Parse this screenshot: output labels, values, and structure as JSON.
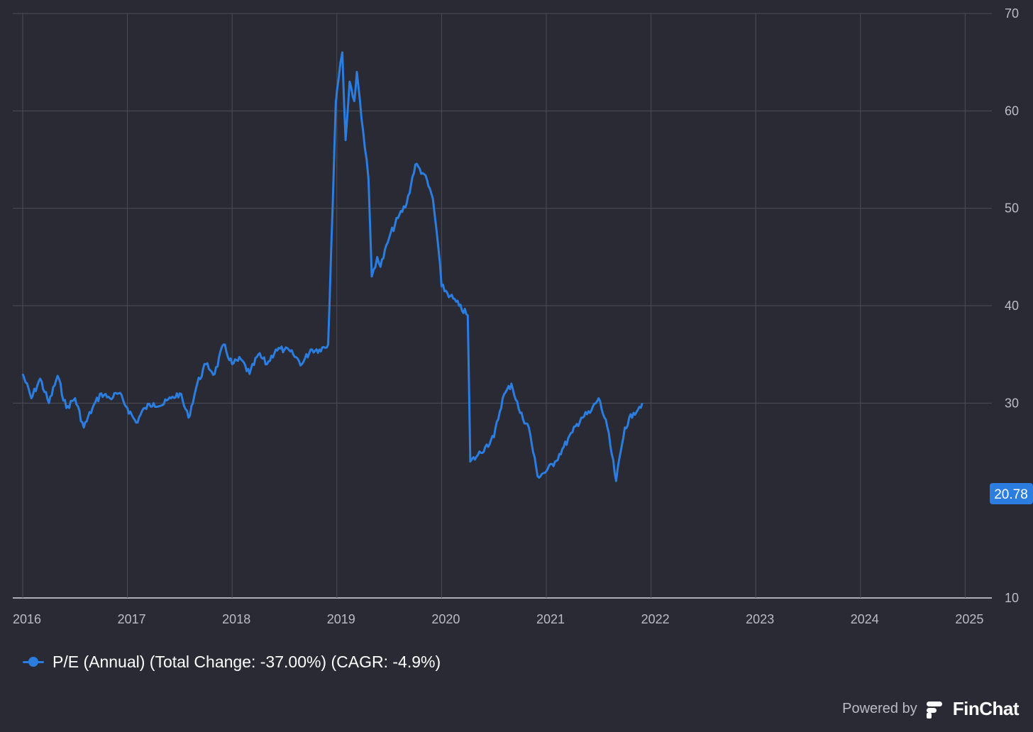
{
  "colors": {
    "background": "#292a34",
    "grid": "#4a4c58",
    "series": "#2b7de0",
    "axis_text": "#b9bcc6"
  },
  "chart_data": {
    "type": "line",
    "y_axis_position": "right",
    "ylim": [
      10,
      70
    ],
    "y_ticks": [
      10,
      30,
      40,
      50,
      60,
      70
    ],
    "x_ticks": [
      "2016",
      "2017",
      "2018",
      "2019",
      "2020",
      "2021",
      "2022",
      "2023",
      "2024",
      "2025"
    ],
    "xlim": [
      "2016-01",
      "2025-03"
    ],
    "grid": true,
    "legend_position": "bottom-left",
    "series": [
      {
        "name": "P/E (Annual) (Total Change: -37.00%) (CAGR: -4.9%)",
        "last_value": "20.78",
        "points": [
          [
            "2016-01",
            33.0
          ],
          [
            "2016-02",
            30.5
          ],
          [
            "2016-03",
            32.5
          ],
          [
            "2016-04",
            30.0
          ],
          [
            "2016-05",
            32.8
          ],
          [
            "2016-06",
            29.5
          ],
          [
            "2016-07",
            30.5
          ],
          [
            "2016-08",
            27.5
          ],
          [
            "2016-09",
            29.5
          ],
          [
            "2016-10",
            31.0
          ],
          [
            "2016-11",
            30.5
          ],
          [
            "2016-12",
            31.0
          ],
          [
            "2017-01",
            29.5
          ],
          [
            "2017-02",
            28.0
          ],
          [
            "2017-03",
            29.5
          ],
          [
            "2017-04",
            30.0
          ],
          [
            "2017-05",
            29.8
          ],
          [
            "2017-06",
            30.5
          ],
          [
            "2017-07",
            31.0
          ],
          [
            "2017-08",
            28.5
          ],
          [
            "2017-09",
            32.0
          ],
          [
            "2017-10",
            34.0
          ],
          [
            "2017-11",
            33.0
          ],
          [
            "2017-12",
            36.0
          ],
          [
            "2018-01",
            34.0
          ],
          [
            "2018-02",
            34.5
          ],
          [
            "2018-03",
            33.0
          ],
          [
            "2018-04",
            35.0
          ],
          [
            "2018-05",
            34.0
          ],
          [
            "2018-06",
            35.5
          ],
          [
            "2018-07",
            35.5
          ],
          [
            "2018-08",
            35.0
          ],
          [
            "2018-09",
            34.0
          ],
          [
            "2018-10",
            35.5
          ],
          [
            "2018-11",
            35.5
          ],
          [
            "2018-12",
            36.0
          ],
          [
            "2018-12-28",
            61.0
          ],
          [
            "2019-01",
            62.0
          ],
          [
            "2019-01-20",
            66.0
          ],
          [
            "2019-02",
            57.0
          ],
          [
            "2019-02-15",
            63.0
          ],
          [
            "2019-03",
            61.0
          ],
          [
            "2019-03-10",
            64.0
          ],
          [
            "2019-04",
            58.0
          ],
          [
            "2019-04-20",
            53.0
          ],
          [
            "2019-05",
            43.0
          ],
          [
            "2019-05-20",
            45.0
          ],
          [
            "2019-06",
            44.0
          ],
          [
            "2019-07",
            47.0
          ],
          [
            "2019-08",
            49.0
          ],
          [
            "2019-09",
            50.5
          ],
          [
            "2019-10",
            54.5
          ],
          [
            "2019-11",
            53.5
          ],
          [
            "2019-12",
            51.0
          ],
          [
            "2019-12-20",
            46.0
          ],
          [
            "2020-01",
            42.0
          ],
          [
            "2020-02",
            41.0
          ],
          [
            "2020-03",
            40.0
          ],
          [
            "2020-04",
            39.0
          ],
          [
            "2020-04-10",
            24.0
          ],
          [
            "2020-05",
            24.5
          ],
          [
            "2020-06",
            25.5
          ],
          [
            "2020-07",
            26.5
          ],
          [
            "2020-08",
            30.5
          ],
          [
            "2020-09",
            32.0
          ],
          [
            "2020-10",
            29.0
          ],
          [
            "2020-11",
            27.5
          ],
          [
            "2020-12",
            22.5
          ],
          [
            "2021-01",
            23.0
          ],
          [
            "2021-02",
            24.0
          ],
          [
            "2021-03",
            25.5
          ],
          [
            "2021-04",
            27.0
          ],
          [
            "2021-05",
            28.5
          ],
          [
            "2021-06",
            29.0
          ],
          [
            "2021-07",
            30.5
          ],
          [
            "2021-08",
            27.5
          ],
          [
            "2021-09",
            22.0
          ],
          [
            "2021-10",
            27.5
          ],
          [
            "2021-11",
            29.0
          ],
          [
            "2021-12",
            30.0
          ]
        ]
      }
    ]
  },
  "footer": {
    "powered_by": "Powered by",
    "brand": "FinChat"
  }
}
